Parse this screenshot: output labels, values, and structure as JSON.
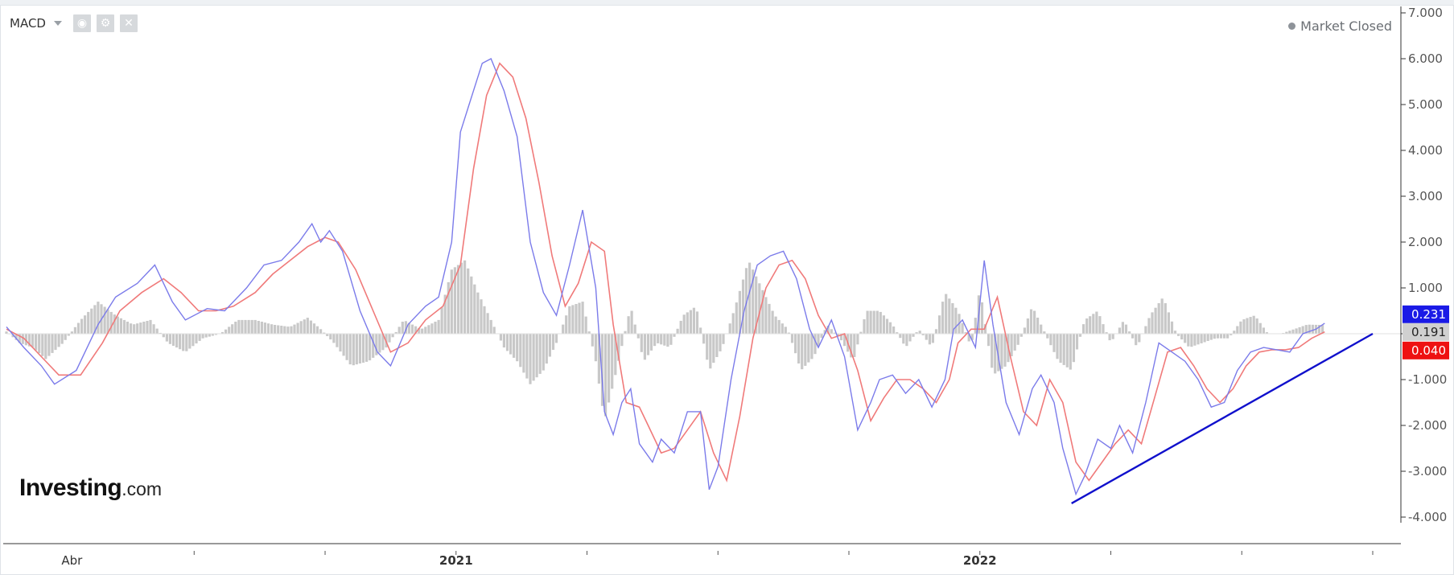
{
  "toolbar": {
    "indicator": "MACD",
    "icons": [
      "eye-icon",
      "gear-icon",
      "close-icon"
    ]
  },
  "status": {
    "label": "Market Closed"
  },
  "brand": {
    "name": "Investing",
    "tld": ".com"
  },
  "colors": {
    "macd_line": "#7b7bea",
    "signal_line": "#f07a7a",
    "histogram": "#c8c8c8",
    "trendline": "#1010cc",
    "flag_macd": "#1a1ae6",
    "flag_signal": "#ee1111",
    "flag_hist": "#d0d0d0"
  },
  "chart_data": {
    "type": "line",
    "title": "",
    "xlabel": "",
    "ylabel": "",
    "ylim": [
      -4.0,
      7.0
    ],
    "grid": false,
    "legend": "none",
    "y_ticks": [
      "7.000",
      "6.000",
      "5.000",
      "4.000",
      "3.000",
      "2.000",
      "1.000",
      "0.000",
      "-1.000",
      "-2.000",
      "-3.000",
      "-4.000"
    ],
    "x_labels": [
      {
        "label": "Abr",
        "x": 0.2
      },
      {
        "label": "2021",
        "x": 9.0
      },
      {
        "label": "2022",
        "x": 21.0
      }
    ],
    "x_range": [
      -1.3,
      30.0
    ],
    "x_ticks": [
      3,
      6,
      9,
      12,
      15,
      18,
      21,
      24,
      27,
      30
    ],
    "last_values": {
      "macd": "0.231",
      "histogram": "0.191",
      "signal": "0.040"
    },
    "series": [
      {
        "role": "macd",
        "points": [
          [
            -1.3,
            0.15
          ],
          [
            -0.9,
            -0.3
          ],
          [
            -0.5,
            -0.7
          ],
          [
            -0.2,
            -1.1
          ],
          [
            0.3,
            -0.8
          ],
          [
            0.8,
            0.2
          ],
          [
            1.2,
            0.8
          ],
          [
            1.7,
            1.1
          ],
          [
            2.1,
            1.5
          ],
          [
            2.5,
            0.7
          ],
          [
            2.8,
            0.3
          ],
          [
            3.3,
            0.55
          ],
          [
            3.7,
            0.5
          ],
          [
            4.2,
            1.0
          ],
          [
            4.6,
            1.5
          ],
          [
            5.0,
            1.6
          ],
          [
            5.4,
            2.0
          ],
          [
            5.7,
            2.4
          ],
          [
            5.9,
            2.0
          ],
          [
            6.1,
            2.25
          ],
          [
            6.4,
            1.8
          ],
          [
            6.8,
            0.5
          ],
          [
            7.2,
            -0.4
          ],
          [
            7.5,
            -0.7
          ],
          [
            7.9,
            0.2
          ],
          [
            8.3,
            0.6
          ],
          [
            8.6,
            0.8
          ],
          [
            8.9,
            2.0
          ],
          [
            9.1,
            4.4
          ],
          [
            9.3,
            5.0
          ],
          [
            9.6,
            5.9
          ],
          [
            9.8,
            6.0
          ],
          [
            10.1,
            5.3
          ],
          [
            10.4,
            4.3
          ],
          [
            10.7,
            2.0
          ],
          [
            11.0,
            0.9
          ],
          [
            11.3,
            0.4
          ],
          [
            11.6,
            1.5
          ],
          [
            11.9,
            2.7
          ],
          [
            12.2,
            1.0
          ],
          [
            12.4,
            -1.7
          ],
          [
            12.6,
            -2.2
          ],
          [
            12.8,
            -1.5
          ],
          [
            13.0,
            -1.2
          ],
          [
            13.2,
            -2.4
          ],
          [
            13.5,
            -2.8
          ],
          [
            13.7,
            -2.3
          ],
          [
            14.0,
            -2.6
          ],
          [
            14.3,
            -1.7
          ],
          [
            14.6,
            -1.7
          ],
          [
            14.8,
            -3.4
          ],
          [
            15.0,
            -2.9
          ],
          [
            15.3,
            -1.0
          ],
          [
            15.6,
            0.5
          ],
          [
            15.9,
            1.5
          ],
          [
            16.2,
            1.7
          ],
          [
            16.5,
            1.8
          ],
          [
            16.8,
            1.2
          ],
          [
            17.1,
            0.1
          ],
          [
            17.3,
            -0.3
          ],
          [
            17.6,
            0.3
          ],
          [
            17.9,
            -0.5
          ],
          [
            18.2,
            -2.1
          ],
          [
            18.5,
            -1.5
          ],
          [
            18.7,
            -1.0
          ],
          [
            19.0,
            -0.9
          ],
          [
            19.3,
            -1.3
          ],
          [
            19.6,
            -1.0
          ],
          [
            19.9,
            -1.6
          ],
          [
            20.2,
            -1.0
          ],
          [
            20.4,
            0.1
          ],
          [
            20.6,
            0.3
          ],
          [
            20.9,
            -0.3
          ],
          [
            21.1,
            1.6
          ],
          [
            21.3,
            0.2
          ],
          [
            21.6,
            -1.5
          ],
          [
            21.9,
            -2.2
          ],
          [
            22.2,
            -1.2
          ],
          [
            22.4,
            -0.9
          ],
          [
            22.7,
            -1.5
          ],
          [
            22.9,
            -2.5
          ],
          [
            23.2,
            -3.5
          ],
          [
            23.4,
            -3.1
          ],
          [
            23.7,
            -2.3
          ],
          [
            24.0,
            -2.5
          ],
          [
            24.2,
            -2.0
          ],
          [
            24.5,
            -2.6
          ],
          [
            24.8,
            -1.5
          ],
          [
            25.1,
            -0.2
          ],
          [
            25.4,
            -0.4
          ],
          [
            25.7,
            -0.6
          ],
          [
            26.0,
            -1.0
          ],
          [
            26.3,
            -1.6
          ],
          [
            26.6,
            -1.5
          ],
          [
            26.9,
            -0.8
          ],
          [
            27.2,
            -0.4
          ],
          [
            27.5,
            -0.3
          ],
          [
            27.8,
            -0.35
          ],
          [
            28.1,
            -0.4
          ],
          [
            28.4,
            0.0
          ],
          [
            28.7,
            0.1
          ],
          [
            28.9,
            0.23
          ]
        ]
      },
      {
        "role": "signal",
        "points": [
          [
            -1.3,
            0.1
          ],
          [
            -0.9,
            -0.1
          ],
          [
            -0.5,
            -0.5
          ],
          [
            -0.1,
            -0.9
          ],
          [
            0.4,
            -0.9
          ],
          [
            0.9,
            -0.2
          ],
          [
            1.3,
            0.5
          ],
          [
            1.8,
            0.9
          ],
          [
            2.3,
            1.2
          ],
          [
            2.7,
            0.9
          ],
          [
            3.1,
            0.5
          ],
          [
            3.5,
            0.5
          ],
          [
            3.9,
            0.6
          ],
          [
            4.4,
            0.9
          ],
          [
            4.8,
            1.3
          ],
          [
            5.2,
            1.6
          ],
          [
            5.6,
            1.9
          ],
          [
            6.0,
            2.1
          ],
          [
            6.3,
            2.0
          ],
          [
            6.7,
            1.4
          ],
          [
            7.1,
            0.5
          ],
          [
            7.5,
            -0.4
          ],
          [
            7.9,
            -0.2
          ],
          [
            8.3,
            0.3
          ],
          [
            8.7,
            0.6
          ],
          [
            9.1,
            1.5
          ],
          [
            9.4,
            3.6
          ],
          [
            9.7,
            5.2
          ],
          [
            10.0,
            5.9
          ],
          [
            10.3,
            5.6
          ],
          [
            10.6,
            4.7
          ],
          [
            10.9,
            3.3
          ],
          [
            11.2,
            1.7
          ],
          [
            11.5,
            0.6
          ],
          [
            11.8,
            1.1
          ],
          [
            12.1,
            2.0
          ],
          [
            12.4,
            1.8
          ],
          [
            12.6,
            0.2
          ],
          [
            12.9,
            -1.5
          ],
          [
            13.2,
            -1.6
          ],
          [
            13.4,
            -2.0
          ],
          [
            13.7,
            -2.6
          ],
          [
            14.0,
            -2.5
          ],
          [
            14.3,
            -2.1
          ],
          [
            14.6,
            -1.7
          ],
          [
            14.9,
            -2.6
          ],
          [
            15.2,
            -3.2
          ],
          [
            15.5,
            -1.8
          ],
          [
            15.8,
            -0.1
          ],
          [
            16.1,
            1.0
          ],
          [
            16.4,
            1.5
          ],
          [
            16.7,
            1.6
          ],
          [
            17.0,
            1.2
          ],
          [
            17.3,
            0.4
          ],
          [
            17.6,
            -0.1
          ],
          [
            17.9,
            0.0
          ],
          [
            18.2,
            -0.8
          ],
          [
            18.5,
            -1.9
          ],
          [
            18.8,
            -1.4
          ],
          [
            19.1,
            -1.0
          ],
          [
            19.4,
            -1.0
          ],
          [
            19.7,
            -1.2
          ],
          [
            20.0,
            -1.5
          ],
          [
            20.3,
            -1.0
          ],
          [
            20.5,
            -0.2
          ],
          [
            20.8,
            0.1
          ],
          [
            21.1,
            0.1
          ],
          [
            21.4,
            0.8
          ],
          [
            21.7,
            -0.5
          ],
          [
            22.0,
            -1.7
          ],
          [
            22.3,
            -2.0
          ],
          [
            22.6,
            -1.0
          ],
          [
            22.9,
            -1.5
          ],
          [
            23.2,
            -2.8
          ],
          [
            23.5,
            -3.2
          ],
          [
            23.8,
            -2.8
          ],
          [
            24.1,
            -2.4
          ],
          [
            24.4,
            -2.1
          ],
          [
            24.7,
            -2.4
          ],
          [
            25.0,
            -1.4
          ],
          [
            25.3,
            -0.4
          ],
          [
            25.6,
            -0.3
          ],
          [
            25.9,
            -0.7
          ],
          [
            26.2,
            -1.2
          ],
          [
            26.5,
            -1.5
          ],
          [
            26.8,
            -1.2
          ],
          [
            27.1,
            -0.7
          ],
          [
            27.4,
            -0.4
          ],
          [
            27.7,
            -0.35
          ],
          [
            28.0,
            -0.35
          ],
          [
            28.3,
            -0.3
          ],
          [
            28.6,
            -0.1
          ],
          [
            28.9,
            0.04
          ]
        ]
      },
      {
        "role": "histogram",
        "points": [
          [
            -1.3,
            0.05
          ],
          [
            -1.0,
            -0.2
          ],
          [
            -0.7,
            -0.3
          ],
          [
            -0.4,
            -0.55
          ],
          [
            0.0,
            -0.2
          ],
          [
            0.4,
            0.3
          ],
          [
            0.8,
            0.7
          ],
          [
            1.2,
            0.4
          ],
          [
            1.6,
            0.2
          ],
          [
            2.0,
            0.3
          ],
          [
            2.4,
            -0.2
          ],
          [
            2.8,
            -0.4
          ],
          [
            3.2,
            -0.1
          ],
          [
            3.6,
            0.0
          ],
          [
            4.0,
            0.3
          ],
          [
            4.4,
            0.3
          ],
          [
            4.8,
            0.2
          ],
          [
            5.2,
            0.15
          ],
          [
            5.6,
            0.35
          ],
          [
            5.9,
            0.1
          ],
          [
            6.2,
            -0.2
          ],
          [
            6.6,
            -0.7
          ],
          [
            7.0,
            -0.6
          ],
          [
            7.4,
            -0.3
          ],
          [
            7.8,
            0.3
          ],
          [
            8.2,
            0.1
          ],
          [
            8.6,
            0.3
          ],
          [
            8.9,
            1.4
          ],
          [
            9.2,
            1.6
          ],
          [
            9.5,
            0.9
          ],
          [
            9.8,
            0.3
          ],
          [
            10.1,
            -0.3
          ],
          [
            10.4,
            -0.6
          ],
          [
            10.7,
            -1.1
          ],
          [
            11.0,
            -0.8
          ],
          [
            11.3,
            -0.2
          ],
          [
            11.6,
            0.6
          ],
          [
            11.9,
            0.7
          ],
          [
            12.2,
            -0.6
          ],
          [
            12.4,
            -1.9
          ],
          [
            12.7,
            -0.7
          ],
          [
            13.0,
            0.6
          ],
          [
            13.3,
            -0.6
          ],
          [
            13.6,
            -0.2
          ],
          [
            13.9,
            -0.3
          ],
          [
            14.2,
            0.4
          ],
          [
            14.5,
            0.6
          ],
          [
            14.8,
            -0.8
          ],
          [
            15.1,
            -0.3
          ],
          [
            15.4,
            0.6
          ],
          [
            15.7,
            1.6
          ],
          [
            16.0,
            1.0
          ],
          [
            16.3,
            0.4
          ],
          [
            16.6,
            0.1
          ],
          [
            16.9,
            -0.8
          ],
          [
            17.2,
            -0.5
          ],
          [
            17.5,
            0.2
          ],
          [
            17.8,
            -0.1
          ],
          [
            18.1,
            -0.6
          ],
          [
            18.4,
            0.5
          ],
          [
            18.7,
            0.5
          ],
          [
            19.0,
            0.2
          ],
          [
            19.3,
            -0.3
          ],
          [
            19.6,
            0.1
          ],
          [
            19.9,
            -0.3
          ],
          [
            20.2,
            0.9
          ],
          [
            20.5,
            0.5
          ],
          [
            20.8,
            -0.3
          ],
          [
            21.0,
            1.0
          ],
          [
            21.3,
            -0.9
          ],
          [
            21.6,
            -0.7
          ],
          [
            21.9,
            -0.2
          ],
          [
            22.2,
            0.6
          ],
          [
            22.5,
            0.0
          ],
          [
            22.8,
            -0.6
          ],
          [
            23.1,
            -0.8
          ],
          [
            23.4,
            0.3
          ],
          [
            23.7,
            0.5
          ],
          [
            24.0,
            -0.2
          ],
          [
            24.3,
            0.3
          ],
          [
            24.6,
            -0.3
          ],
          [
            24.9,
            0.4
          ],
          [
            25.2,
            0.8
          ],
          [
            25.5,
            0.0
          ],
          [
            25.8,
            -0.3
          ],
          [
            26.1,
            -0.2
          ],
          [
            26.4,
            -0.1
          ],
          [
            26.7,
            -0.1
          ],
          [
            27.0,
            0.3
          ],
          [
            27.3,
            0.4
          ],
          [
            27.6,
            0.0
          ],
          [
            27.9,
            0.0
          ],
          [
            28.2,
            0.1
          ],
          [
            28.5,
            0.2
          ],
          [
            28.9,
            0.19
          ]
        ]
      }
    ],
    "trendline": {
      "from": [
        23.1,
        -3.7
      ],
      "to": [
        30.0,
        0.0
      ]
    }
  }
}
